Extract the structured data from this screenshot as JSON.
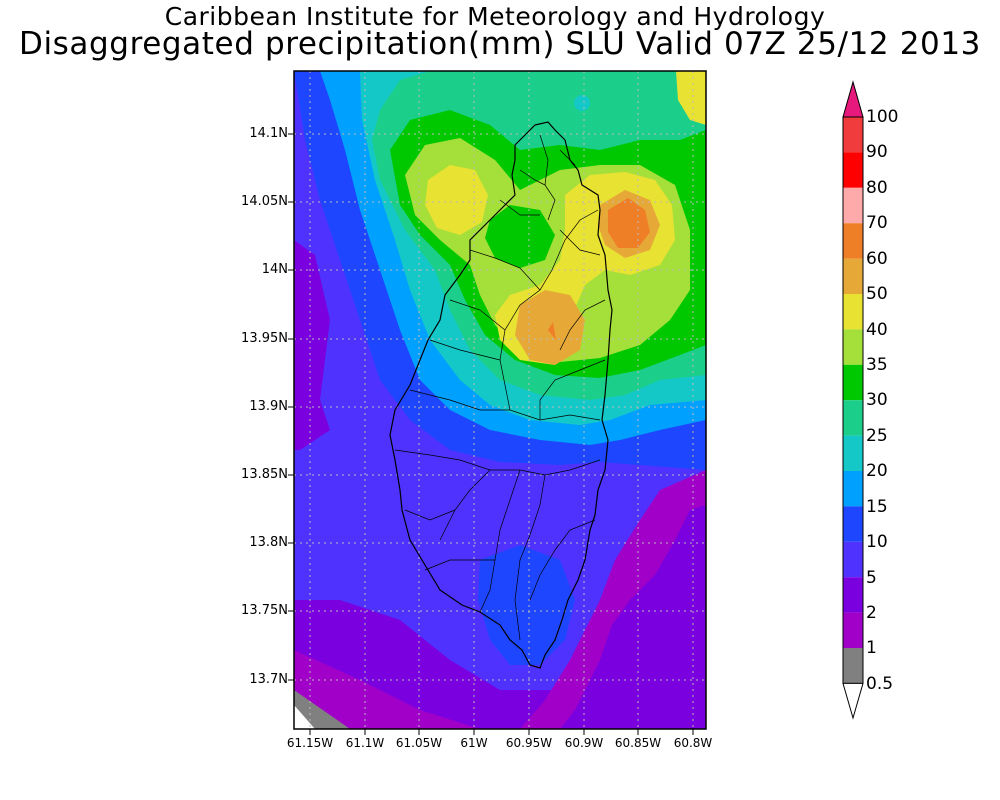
{
  "title_line1": "Caribbean Institute for Meteorology and Hydrology",
  "title_line2": "Disaggregated precipitation(mm) SLU Valid 07Z 25/12 2013",
  "lat_ticks": [
    "14.1N",
    "14.05N",
    "14N",
    "13.95N",
    "13.9N",
    "13.85N",
    "13.8N",
    "13.75N",
    "13.7N"
  ],
  "lon_ticks": [
    "61.15W",
    "61.1W",
    "61.05W",
    "61W",
    "60.95W",
    "60.9W",
    "60.85W",
    "60.8W"
  ],
  "legend": {
    "levels": [
      "100",
      "90",
      "80",
      "70",
      "60",
      "50",
      "40",
      "35",
      "30",
      "25",
      "20",
      "15",
      "10",
      "5",
      "2",
      "1",
      "0.5"
    ],
    "colors": {
      "above_100": "#e7197d",
      "90_100": "#f03c3c",
      "80_90": "#ff0000",
      "70_80": "#ffaaaa",
      "60_70": "#ef7f27",
      "50_60": "#e6a938",
      "40_50": "#e8e232",
      "35_40": "#a5e03a",
      "30_35": "#00c800",
      "25_30": "#1bcf8a",
      "20_25": "#14c8c8",
      "15_20": "#00a0ff",
      "10_15": "#1e46ff",
      "5_10": "#5032ff",
      "2_5": "#7a00e0",
      "1_2": "#a000c8",
      "0.5_1": "#808080",
      "below_0.5": "#ffffff"
    }
  }
}
